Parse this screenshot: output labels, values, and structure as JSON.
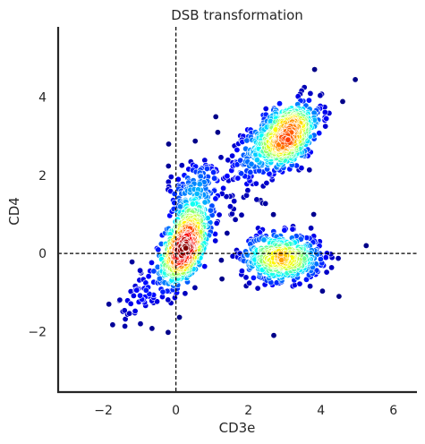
{
  "chart_data": {
    "type": "scatter",
    "title": "DSB transformation",
    "xlabel": "CD3e",
    "ylabel": "CD4",
    "xlim": [
      -3.25,
      6.65
    ],
    "ylim": [
      -3.55,
      5.8
    ],
    "xticks": [
      -2,
      0,
      2,
      4,
      6
    ],
    "xtick_labels": [
      "−2",
      "0",
      "2",
      "4",
      "6"
    ],
    "yticks": [
      -2,
      0,
      2,
      4
    ],
    "ytick_labels": [
      "−2",
      "0",
      "2",
      "4"
    ],
    "reference_lines": {
      "x": 0,
      "y": 0,
      "style": "dashed",
      "color": "#000000"
    },
    "grid": false,
    "colormap": "jet",
    "color_encoding": "point density",
    "clusters": [
      {
        "center": [
          0.25,
          0.2
        ],
        "spread": [
          0.3,
          0.5
        ],
        "count": 650,
        "corr": 0.45
      },
      {
        "center": [
          3.0,
          3.0
        ],
        "spread": [
          0.5,
          0.45
        ],
        "count": 650,
        "corr": 0.5
      },
      {
        "center": [
          2.9,
          -0.1
        ],
        "spread": [
          0.55,
          0.3
        ],
        "count": 480,
        "corr": 0.0
      },
      {
        "center": [
          0.5,
          1.6
        ],
        "spread": [
          0.35,
          0.45
        ],
        "count": 140,
        "corr": 0.2
      },
      {
        "center": [
          -0.7,
          -0.9
        ],
        "spread": [
          0.45,
          0.45
        ],
        "count": 70,
        "corr": 0.6
      },
      {
        "center": [
          1.8,
          2.0
        ],
        "spread": [
          0.5,
          0.6
        ],
        "count": 60,
        "corr": 0.0
      }
    ],
    "outliers": [
      [
        -1.85,
        -1.3
      ],
      [
        5.25,
        0.2
      ],
      [
        4.95,
        4.45
      ],
      [
        2.7,
        -2.1
      ],
      [
        1.1,
        3.5
      ],
      [
        -0.2,
        2.8
      ],
      [
        4.0,
        -0.3
      ],
      [
        4.5,
        -1.1
      ],
      [
        3.8,
        1.0
      ],
      [
        1.5,
        1.2
      ]
    ]
  },
  "colors": {
    "axis": "#262626",
    "reference_line": "#000000",
    "point_edge": "#ffffff",
    "colormap_stops": [
      "#00007f",
      "#0000ff",
      "#007fff",
      "#00ffff",
      "#7fff7f",
      "#ffff00",
      "#ff7f00",
      "#ff0000",
      "#7f0000"
    ]
  }
}
